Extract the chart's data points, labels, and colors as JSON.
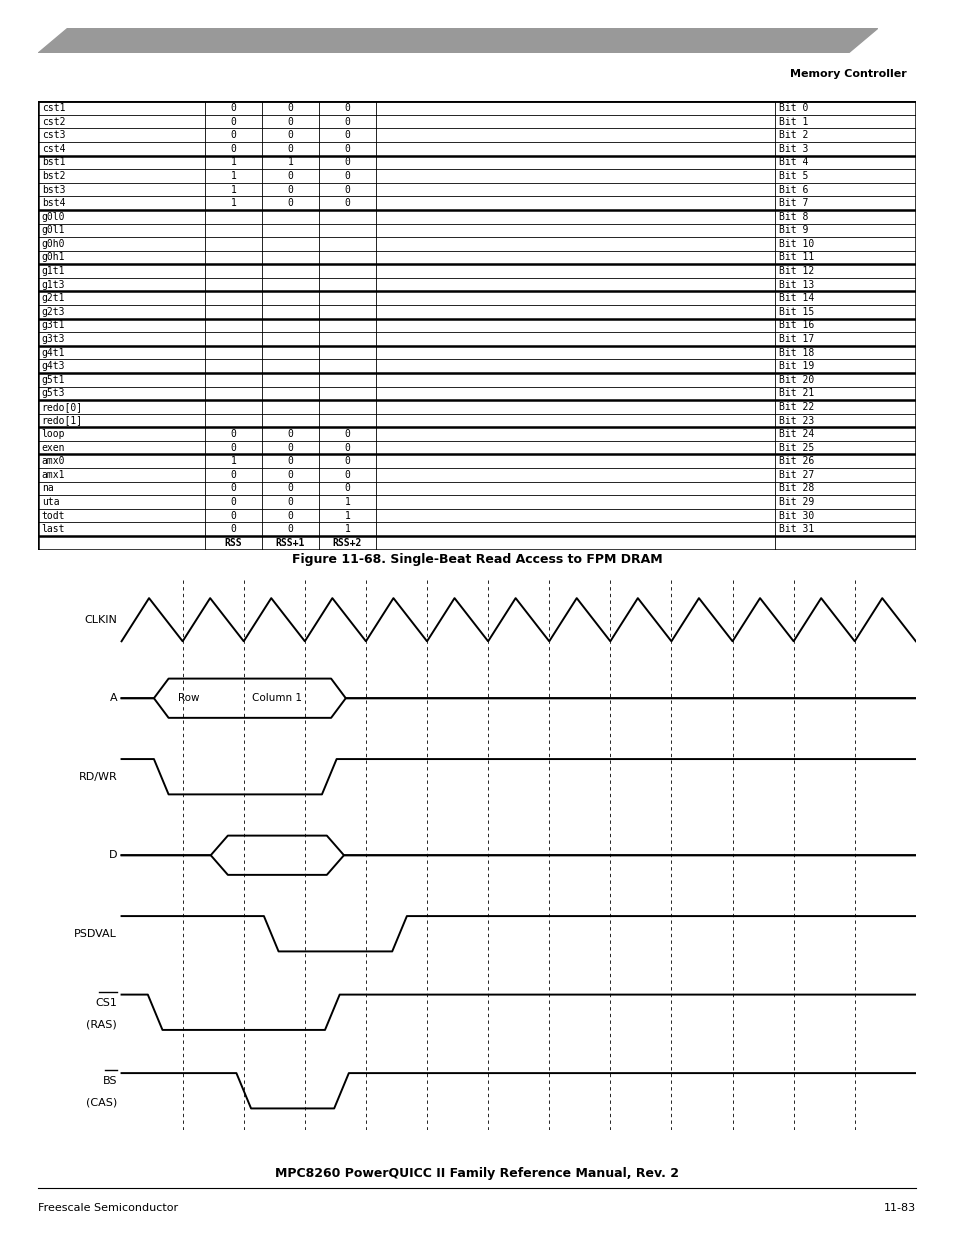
{
  "title": "Figure 11-68. Single-Beat Read Access to FPM DRAM",
  "header_text": "Memory Controller",
  "footer_left": "Freescale Semiconductor",
  "footer_right": "11-83",
  "footer_center": "MPC8260 PowerQUICC II Family Reference Manual, Rev. 2",
  "table_rows": [
    [
      "cst1",
      "0",
      "0",
      "0",
      "Bit 0"
    ],
    [
      "cst2",
      "0",
      "0",
      "0",
      "Bit 1"
    ],
    [
      "cst3",
      "0",
      "0",
      "0",
      "Bit 2"
    ],
    [
      "cst4",
      "0",
      "0",
      "0",
      "Bit 3"
    ],
    [
      "bst1",
      "1",
      "1",
      "0",
      "Bit 4"
    ],
    [
      "bst2",
      "1",
      "0",
      "0",
      "Bit 5"
    ],
    [
      "bst3",
      "1",
      "0",
      "0",
      "Bit 6"
    ],
    [
      "bst4",
      "1",
      "0",
      "0",
      "Bit 7"
    ],
    [
      "g0l0",
      "",
      "",
      "",
      "Bit 8"
    ],
    [
      "g0l1",
      "",
      "",
      "",
      "Bit 9"
    ],
    [
      "g0h0",
      "",
      "",
      "",
      "Bit 10"
    ],
    [
      "g0h1",
      "",
      "",
      "",
      "Bit 11"
    ],
    [
      "g1t1",
      "",
      "",
      "",
      "Bit 12"
    ],
    [
      "g1t3",
      "",
      "",
      "",
      "Bit 13"
    ],
    [
      "g2t1",
      "",
      "",
      "",
      "Bit 14"
    ],
    [
      "g2t3",
      "",
      "",
      "",
      "Bit 15"
    ],
    [
      "g3t1",
      "",
      "",
      "",
      "Bit 16"
    ],
    [
      "g3t3",
      "",
      "",
      "",
      "Bit 17"
    ],
    [
      "g4t1",
      "",
      "",
      "",
      "Bit 18"
    ],
    [
      "g4t3",
      "",
      "",
      "",
      "Bit 19"
    ],
    [
      "g5t1",
      "",
      "",
      "",
      "Bit 20"
    ],
    [
      "g5t3",
      "",
      "",
      "",
      "Bit 21"
    ],
    [
      "redo[0]",
      "",
      "",
      "",
      "Bit 22"
    ],
    [
      "redo[1]",
      "",
      "",
      "",
      "Bit 23"
    ],
    [
      "loop",
      "0",
      "0",
      "0",
      "Bit 24"
    ],
    [
      "exen",
      "0",
      "0",
      "0",
      "Bit 25"
    ],
    [
      "amx0",
      "1",
      "0",
      "0",
      "Bit 26"
    ],
    [
      "amx1",
      "0",
      "0",
      "0",
      "Bit 27"
    ],
    [
      "na",
      "0",
      "0",
      "0",
      "Bit 28"
    ],
    [
      "uta",
      "0",
      "0",
      "1",
      "Bit 29"
    ],
    [
      "todt",
      "0",
      "0",
      "1",
      "Bit 30"
    ],
    [
      "last",
      "0",
      "0",
      "1",
      "Bit 31"
    ]
  ],
  "group_borders_before": [
    0,
    4,
    8,
    12,
    14,
    16,
    18,
    20,
    22,
    24,
    26
  ],
  "signals": [
    "CLKIN",
    "A",
    "RD/WR",
    "D",
    "PSDVAL",
    "CS1\n(RAS)",
    "BS\n(CAS)"
  ],
  "n_clk": 13,
  "bg_color": "#ffffff",
  "gray_bar_color": "#999999",
  "table_font_size": 7.0,
  "signal_font_size": 8.0,
  "lw_sig": 1.4,
  "lw_thick": 1.8,
  "lw_thin": 0.6
}
